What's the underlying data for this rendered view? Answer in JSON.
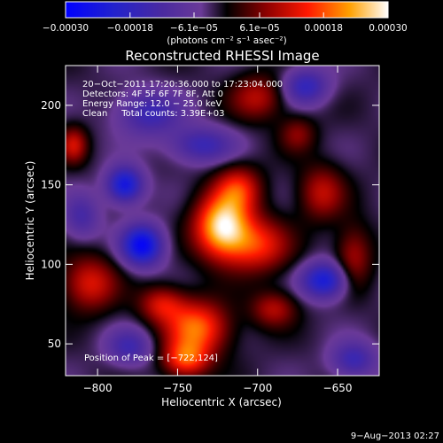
{
  "chart_data": {
    "type": "heatmap",
    "title": "Reconstructed RHESSI Image",
    "xlabel": "Heliocentric X (arcsec)",
    "ylabel": "Heliocentric Y (arcsec)",
    "xlim": [
      -820,
      -624
    ],
    "ylim": [
      30,
      225
    ],
    "xticks": [
      -800,
      -750,
      -700,
      -650
    ],
    "yticks": [
      50,
      100,
      150,
      200
    ],
    "x_tick_labels": [
      "−800",
      "−750",
      "−700",
      "−650"
    ],
    "y_tick_labels": [
      "50",
      "100",
      "150",
      "200"
    ],
    "colorbar": {
      "min": -0.0003,
      "max": 0.0003,
      "ticks": [
        -0.0003,
        -0.00018,
        -6.1e-05,
        6.1e-05,
        0.00018,
        0.0003
      ],
      "tick_labels": [
        "−0.00030",
        "−0.00018",
        "−6.1e−05",
        "6.1e−05",
        "0.00018",
        "0.00030"
      ],
      "unit_label": "(photons cm⁻² s⁻¹ asec⁻²)",
      "colormap": [
        "#0000ff",
        "#2222cc",
        "#4a2aa0",
        "#6a3a98",
        "#000000",
        "#8a0000",
        "#ff1800",
        "#ffa000",
        "#ffffff"
      ]
    },
    "annotations": [
      "20−Oct−2011 17:20:36.000 to 17:23:04.000",
      "Detectors: 4F 5F 6F 7F 8F, Att 0",
      "Energy Range: 12.0 − 25.0 keV",
      "Clean     Total counts: 3.39E+03",
      "Position of Peak = [−722,124]"
    ],
    "peak": {
      "x": -722,
      "y": 124
    },
    "sources": [
      {
        "x": -722,
        "y": 124,
        "amp": 1.0,
        "sx": 12,
        "sy": 14
      },
      {
        "x": -700,
        "y": 112,
        "amp": 0.55,
        "sx": 14,
        "sy": 12
      },
      {
        "x": -712,
        "y": 148,
        "amp": 0.5,
        "sx": 10,
        "sy": 10
      },
      {
        "x": -738,
        "y": 60,
        "amp": 0.72,
        "sx": 14,
        "sy": 12
      },
      {
        "x": -760,
        "y": 75,
        "amp": 0.45,
        "sx": 10,
        "sy": 8
      },
      {
        "x": -745,
        "y": 40,
        "amp": 0.6,
        "sx": 10,
        "sy": 8
      },
      {
        "x": -805,
        "y": 88,
        "amp": 0.5,
        "sx": 12,
        "sy": 12
      },
      {
        "x": -815,
        "y": 175,
        "amp": 0.45,
        "sx": 6,
        "sy": 8
      },
      {
        "x": -700,
        "y": 205,
        "amp": 0.4,
        "sx": 12,
        "sy": 10
      },
      {
        "x": -690,
        "y": 72,
        "amp": 0.4,
        "sx": 10,
        "sy": 8
      },
      {
        "x": -660,
        "y": 145,
        "amp": 0.42,
        "sx": 10,
        "sy": 12
      },
      {
        "x": -640,
        "y": 105,
        "amp": 0.38,
        "sx": 8,
        "sy": 14
      },
      {
        "x": -675,
        "y": 182,
        "amp": 0.3,
        "sx": 8,
        "sy": 8
      },
      {
        "x": -783,
        "y": 150,
        "amp": -0.75,
        "sx": 8,
        "sy": 8
      },
      {
        "x": -772,
        "y": 112,
        "amp": -0.85,
        "sx": 9,
        "sy": 9
      },
      {
        "x": -658,
        "y": 90,
        "amp": -0.7,
        "sx": 10,
        "sy": 8
      },
      {
        "x": -670,
        "y": 212,
        "amp": -0.5,
        "sx": 10,
        "sy": 8
      },
      {
        "x": -768,
        "y": 195,
        "amp": -0.45,
        "sx": 14,
        "sy": 10
      },
      {
        "x": -735,
        "y": 175,
        "amp": -0.45,
        "sx": 14,
        "sy": 8
      },
      {
        "x": -780,
        "y": 48,
        "amp": -0.4,
        "sx": 10,
        "sy": 8
      },
      {
        "x": -640,
        "y": 40,
        "amp": -0.45,
        "sx": 10,
        "sy": 8
      },
      {
        "x": -810,
        "y": 130,
        "amp": -0.35,
        "sx": 8,
        "sy": 10
      }
    ]
  },
  "footer": {
    "date": "9−Aug−2013 02:27"
  }
}
